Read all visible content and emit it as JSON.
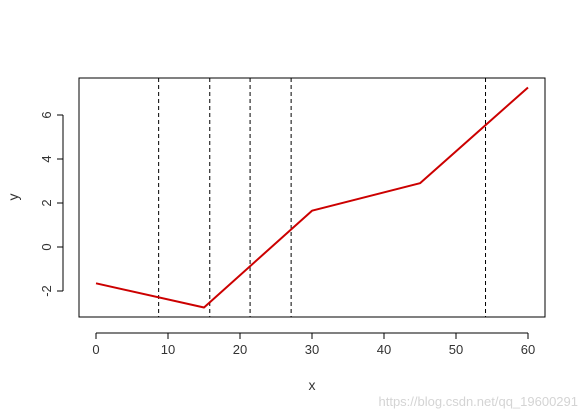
{
  "chart_data": {
    "type": "line",
    "title": "",
    "xlabel": "x",
    "ylabel": "y",
    "xlim": [
      0,
      60
    ],
    "ylim": [
      -3,
      7.5
    ],
    "x_ticks": [
      0,
      10,
      20,
      30,
      40,
      50,
      60
    ],
    "x_tick_labels": [
      "0",
      "10",
      "20",
      "30",
      "40",
      "50",
      "60"
    ],
    "y_ticks": [
      -2,
      0,
      2,
      4,
      6
    ],
    "y_tick_labels": [
      "-2",
      "0",
      "2",
      "4",
      "6"
    ],
    "grid": false,
    "series": [
      {
        "color": "#cc0000",
        "x": [
          0,
          15,
          30,
          45,
          60
        ],
        "y": [
          -1.65,
          -2.75,
          1.65,
          2.9,
          7.25
        ]
      }
    ],
    "vertical_lines": {
      "x": [
        8.7,
        15.8,
        21.4,
        27.1,
        54.1
      ],
      "style": "dashed",
      "color": "#000000"
    }
  },
  "watermark": "https://blog.csdn.net/qq_19600291"
}
